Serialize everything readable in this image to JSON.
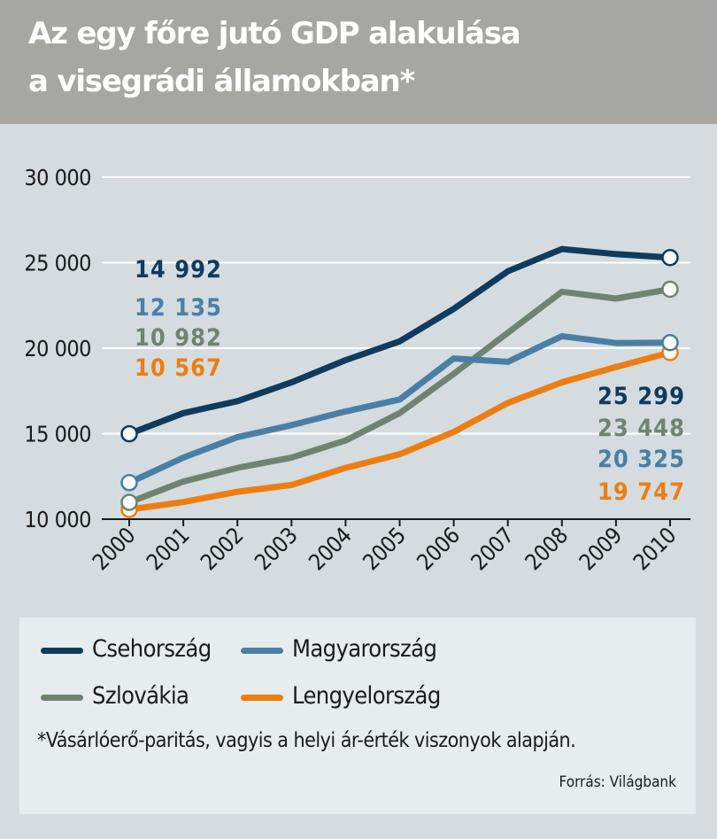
{
  "header": {
    "title_line1": "Az egy főre jutó GDP alakulása",
    "title_line2": "a visegrádi államokban*"
  },
  "chart_data": {
    "type": "line",
    "title": "Az egy főre jutó GDP alakulása a visegrádi államokban*",
    "x": [
      "2000",
      "2001",
      "2002",
      "2003",
      "2004",
      "2005",
      "2006",
      "2007",
      "2008",
      "2009",
      "2010"
    ],
    "ylim": [
      10000,
      30000
    ],
    "yticks": [
      10000,
      15000,
      20000,
      25000,
      30000
    ],
    "ytick_labels": [
      "10 000",
      "15 000",
      "20 000",
      "25 000",
      "30 000"
    ],
    "grid": true,
    "series": [
      {
        "name": "Csehország",
        "color": "#0e3b5e",
        "values": [
          14992,
          16200,
          16900,
          18000,
          19300,
          20400,
          22300,
          24500,
          25800,
          25500,
          25299
        ],
        "start_label": "14 992",
        "end_label": "25 299"
      },
      {
        "name": "Magyarország",
        "color": "#4a7fa5",
        "values": [
          12135,
          13600,
          14800,
          15500,
          16300,
          17000,
          19400,
          19200,
          20700,
          20300,
          20325
        ],
        "start_label": "12 135",
        "end_label": "20 325"
      },
      {
        "name": "Szlovákia",
        "color": "#6f8373",
        "values": [
          10982,
          12200,
          13000,
          13600,
          14600,
          16200,
          18500,
          20900,
          23300,
          22900,
          23448
        ],
        "start_label": "10 982",
        "end_label": "23 448"
      },
      {
        "name": "Lengyelország",
        "color": "#ee7d11",
        "values": [
          10567,
          11000,
          11600,
          12000,
          13000,
          13800,
          15100,
          16800,
          18000,
          18900,
          19747
        ],
        "start_label": "10 567",
        "end_label": "19 747"
      }
    ]
  },
  "legend": {
    "items": [
      {
        "label": "Csehország",
        "color": "#0e3b5e"
      },
      {
        "label": "Magyarország",
        "color": "#4a7fa5"
      },
      {
        "label": "Szlovákia",
        "color": "#6f8373"
      },
      {
        "label": "Lengyelország",
        "color": "#ee7d11"
      }
    ]
  },
  "footnote": "*Vásárlóerő-paritás, vagyis a helyi ár-érték viszonyok alapján.",
  "source": "Forrás: Világbank"
}
